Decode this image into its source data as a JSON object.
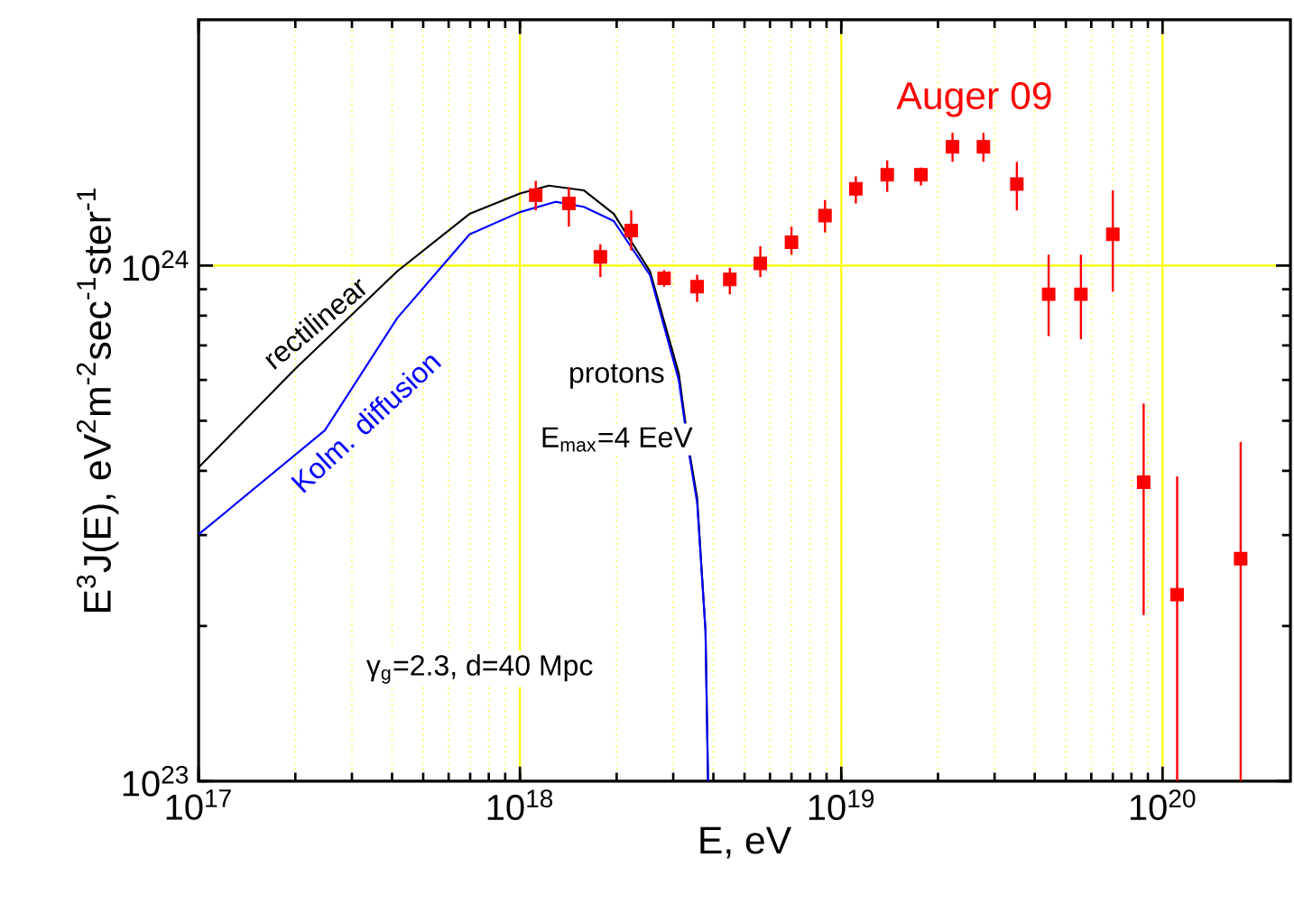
{
  "chart_data": {
    "type": "line",
    "xlabel": "E, eV",
    "ylabel": "E$^{3}$J(E), eV$^{2}$m$^{-2}$sec$^{-1}$ster$^{-1}$",
    "log": "xy",
    "xlim": [
      1e+17,
      2.5e+20
    ],
    "ylim": [
      1e+23,
      3e+24
    ],
    "xticks": [
      {
        "value": 1e+17,
        "label": "10$^{17}$"
      },
      {
        "value": 1e+18,
        "label": "10$^{18}$"
      },
      {
        "value": 1e+19,
        "label": "10$^{19}$"
      },
      {
        "value": 1e+20,
        "label": "10$^{20}$"
      }
    ],
    "yticks": [
      {
        "value": 1e+23,
        "label": "10$^{23}$"
      },
      {
        "value": 1e+24,
        "label": "10$^{24}$"
      }
    ],
    "grid": true,
    "annotations": [
      "protons",
      "E$_{max}$=4 EeV",
      "γ$_{g}$=2.3, d=40 Mpc"
    ],
    "series": [
      {
        "name": "rectilinear",
        "type": "line",
        "color": "#000000",
        "marker": "none",
        "line_style": "solid",
        "x": [
          1e+17,
          2e+17,
          4.15e+17,
          6.97e+17,
          1e+18,
          1.23e+18,
          1.58e+18,
          1.96e+18,
          2.54e+18,
          3.12e+18,
          3.37e+18,
          3.56e+18,
          3.78e+18,
          3.85e+18
        ],
        "values": [
          4.06e+23,
          6.31e+23,
          9.75e+23,
          1.26e+24,
          1.38e+24,
          1.43e+24,
          1.4e+24,
          1.26e+24,
          9.75e+23,
          6.19e+23,
          4.34e+23,
          3.55e+23,
          1.96e+23,
          1e+23
        ]
      },
      {
        "name": "Kolm. diffusion",
        "type": "line",
        "color": "#0000ff",
        "marker": "none",
        "line_style": "solid",
        "x": [
          1e+17,
          2.47e+17,
          4.15e+17,
          6.97e+17,
          1e+18,
          1.29e+18,
          1.58e+18,
          1.96e+18,
          2.54e+18,
          3.12e+18,
          3.37e+18,
          3.56e+18,
          3.78e+18,
          3.85e+18
        ],
        "values": [
          3.01e+23,
          4.79e+23,
          7.91e+23,
          1.15e+24,
          1.27e+24,
          1.33e+24,
          1.3e+24,
          1.22e+24,
          9.59e+23,
          6e+23,
          4.27e+23,
          3.47e+23,
          1.96e+23,
          1e+23
        ]
      },
      {
        "name": "Auger 09",
        "type": "scatter",
        "color": "#ff0000",
        "marker": "square",
        "x": [
          1.12e+18,
          1.42e+18,
          1.78e+18,
          2.22e+18,
          2.81e+18,
          3.56e+18,
          4.5e+18,
          5.6e+18,
          7e+18,
          8.9e+18,
          1.11e+19,
          1.39e+19,
          1.77e+19,
          2.22e+19,
          2.77e+19,
          3.52e+19,
          4.42e+19,
          5.57e+19,
          7e+19,
          8.73e+19,
          1.11e+20,
          1.75e+20
        ],
        "values": [
          1.37e+24,
          1.32e+24,
          1.04e+24,
          1.17e+24,
          9.45e+23,
          9.1e+23,
          9.4e+23,
          1.01e+24,
          1.11e+24,
          1.25e+24,
          1.41e+24,
          1.5e+24,
          1.5e+24,
          1.7e+24,
          1.7e+24,
          1.44e+24,
          8.8e+23,
          8.8e+23,
          1.15e+24,
          3.8e+23,
          2.3e+23,
          2.7e+23
        ],
        "errors": [
          [
            1.28e+24,
            1.46e+24
          ],
          [
            1.19e+24,
            1.42e+24
          ],
          [
            9.5e+23,
            1.1e+24
          ],
          [
            1.07e+24,
            1.28e+24
          ],
          [
            9.1e+23,
            9.8e+23
          ],
          [
            8.5e+23,
            9.6e+23
          ],
          [
            8.8e+23,
            9.9e+23
          ],
          [
            9.5e+23,
            1.09e+24
          ],
          [
            1.05e+24,
            1.19e+24
          ],
          [
            1.16e+24,
            1.34e+24
          ],
          [
            1.32e+24,
            1.49e+24
          ],
          [
            1.39e+24,
            1.6e+24
          ],
          [
            1.43e+24,
            1.55e+24
          ],
          [
            1.59e+24,
            1.81e+24
          ],
          [
            1.59e+24,
            1.81e+24
          ],
          [
            1.28e+24,
            1.59e+24
          ],
          [
            7.3e+23,
            1.05e+24
          ],
          [
            7.2e+23,
            1.05e+24
          ],
          [
            8.9e+23,
            1.4e+24
          ],
          [
            2.1e+23,
            5.4e+23
          ],
          [
            1e+23,
            3.9e+23
          ],
          [
            1e+23,
            4.55e+23
          ]
        ]
      }
    ]
  }
}
